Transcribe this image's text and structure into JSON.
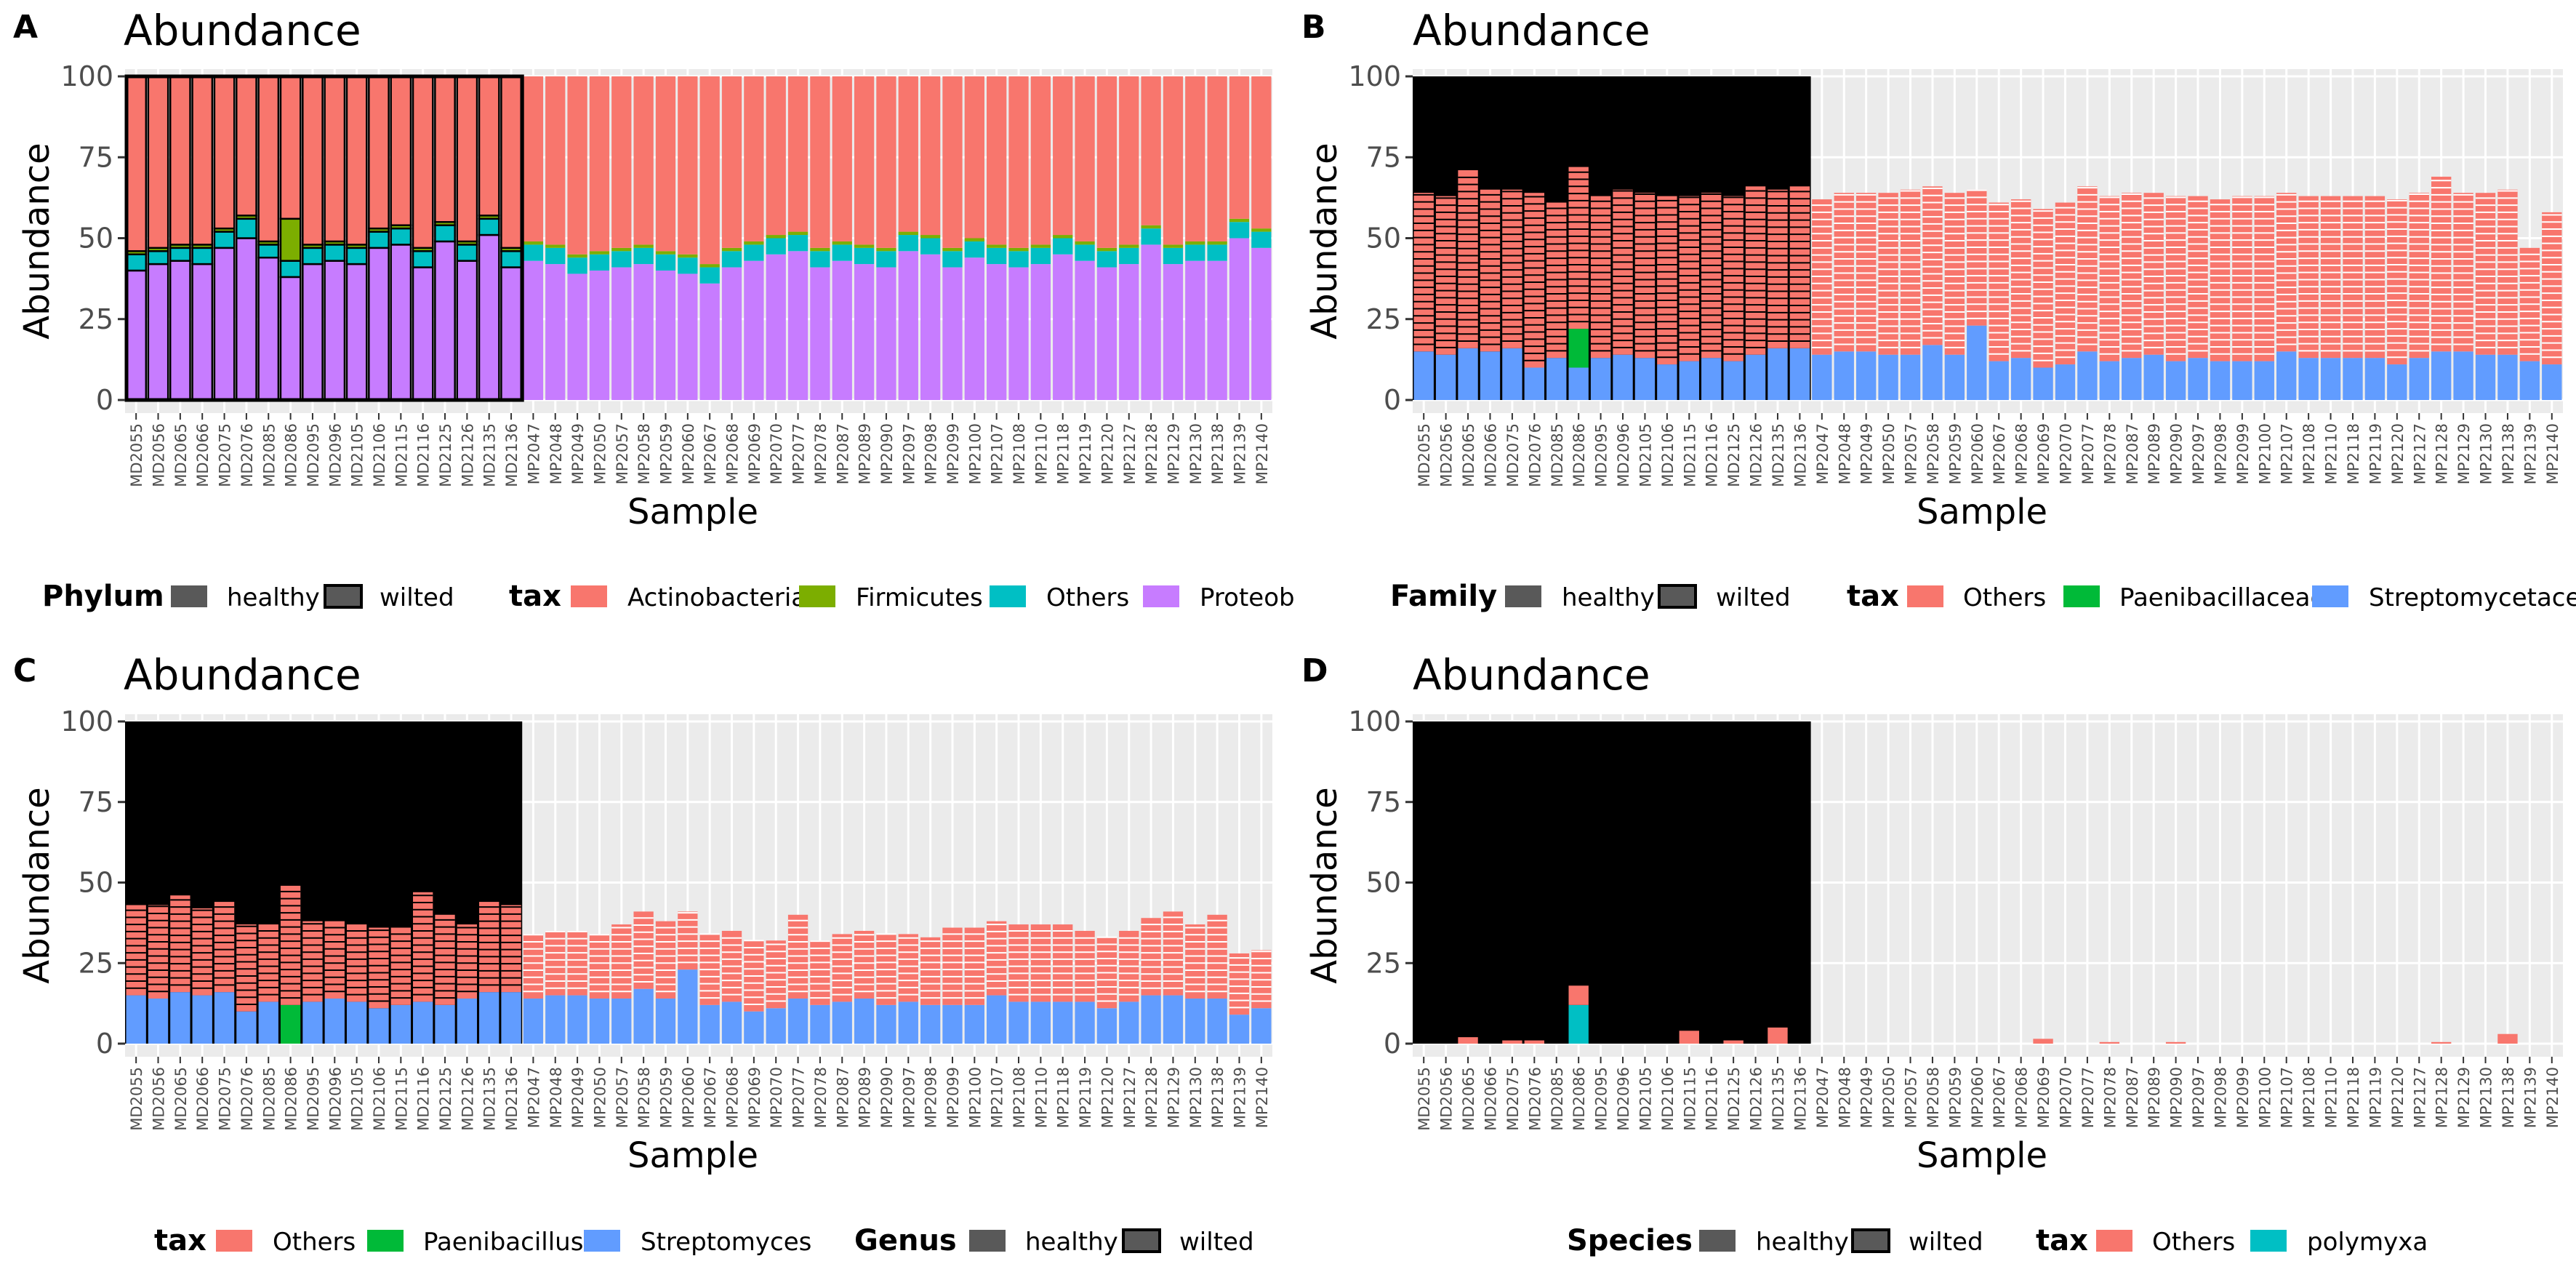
{
  "samples": [
    "MD2055",
    "MD2056",
    "MD2065",
    "MD2066",
    "MD2075",
    "MD2076",
    "MD2085",
    "MD2086",
    "MD2095",
    "MD2096",
    "MD2105",
    "MD2106",
    "MD2115",
    "MD2116",
    "MD2125",
    "MD2126",
    "MD2135",
    "MD2136",
    "MP2047",
    "MP2048",
    "MP2049",
    "MP2050",
    "MP2057",
    "MP2058",
    "MP2059",
    "MP2060",
    "MP2067",
    "MP2068",
    "MP2069",
    "MP2070",
    "MP2077",
    "MP2078",
    "MP2087",
    "MP2089",
    "MP2090",
    "MP2097",
    "MP2098",
    "MP2099",
    "MP2100",
    "MP2107",
    "MP2108",
    "MP2110",
    "MP2118",
    "MP2119",
    "MP2120",
    "MP2127",
    "MP2128",
    "MP2129",
    "MP2130",
    "MP2138",
    "MP2139",
    "MP2140"
  ],
  "colors": {
    "Actinobacteria": "#F8766D",
    "Firmicutes": "#7CAE00",
    "Others_teal": "#00BFC4",
    "Proteobacteria": "#C77CFF",
    "Others_red": "#F8766D",
    "Paenibacillaceae": "#00BA38",
    "Streptomycetaceae": "#619CFF",
    "Paenibacillus": "#00BA38",
    "Streptomyces": "#619CFF",
    "polymyxa": "#00BFC4",
    "healthy": "#595959",
    "wilted_outline": "#000000"
  },
  "chart_data": [
    {
      "panel": "A",
      "type": "bar",
      "title": "Abundance",
      "xlabel": "Sample",
      "ylabel": "Abundance",
      "ylim": [
        0,
        100
      ],
      "yticks": [
        0,
        25,
        50,
        75,
        100
      ],
      "grid": true,
      "legend_position": "bottom",
      "series": [
        {
          "name": "Proteobacteria",
          "values": [
            40,
            42,
            43,
            42,
            47,
            50,
            44,
            38,
            42,
            43,
            42,
            47,
            48,
            41,
            49,
            43,
            51,
            41,
            43,
            42,
            39,
            40,
            41,
            42,
            40,
            39,
            36,
            41,
            43,
            45,
            46,
            41,
            43,
            42,
            41,
            46,
            45,
            41,
            44,
            42,
            41,
            42,
            45,
            43,
            41,
            42,
            48,
            42,
            43,
            43,
            50,
            47
          ]
        },
        {
          "name": "Others",
          "values": [
            5,
            4,
            4,
            5,
            5,
            6,
            4,
            5,
            5,
            5,
            5,
            5,
            5,
            5,
            5,
            5,
            5,
            5,
            5,
            5,
            5,
            5,
            5,
            5,
            5,
            5,
            5,
            5,
            5,
            5,
            5,
            5,
            5,
            5,
            5,
            5,
            5,
            5,
            5,
            5,
            5,
            5,
            5,
            5,
            5,
            5,
            5,
            5,
            5,
            5,
            5,
            5
          ]
        },
        {
          "name": "Firmicutes",
          "values": [
            1,
            1,
            1,
            1,
            1,
            1,
            1,
            13,
            1,
            1,
            1,
            1,
            1,
            1,
            1,
            1,
            1,
            1,
            1,
            1,
            1,
            1,
            1,
            1,
            1,
            1,
            1,
            1,
            1,
            1,
            1,
            1,
            1,
            1,
            1,
            1,
            1,
            1,
            1,
            1,
            1,
            1,
            1,
            1,
            1,
            1,
            1,
            1,
            1,
            1,
            1,
            1
          ]
        },
        {
          "name": "Actinobacteria",
          "values": [
            54,
            53,
            52,
            52,
            47,
            43,
            51,
            44,
            52,
            51,
            52,
            47,
            46,
            53,
            45,
            51,
            43,
            53,
            51,
            52,
            55,
            54,
            53,
            52,
            54,
            55,
            58,
            53,
            51,
            49,
            48,
            53,
            51,
            52,
            53,
            48,
            49,
            53,
            50,
            52,
            53,
            52,
            49,
            51,
            53,
            52,
            46,
            52,
            51,
            51,
            44,
            47
          ]
        }
      ],
      "legend": {
        "title_group": "Phylum",
        "group_levels": [
          "healthy",
          "wilted"
        ],
        "title_tax": "tax",
        "tax_levels": [
          "Actinobacteria",
          "Firmicutes",
          "Others",
          "Proteob"
        ]
      }
    },
    {
      "panel": "B",
      "type": "bar",
      "title": "Abundance",
      "xlabel": "Sample",
      "ylabel": "Abundance",
      "ylim": [
        0,
        100
      ],
      "yticks": [
        0,
        25,
        50,
        75,
        100
      ],
      "grid": true,
      "legend_position": "bottom",
      "series": [
        {
          "name": "Streptomycetaceae",
          "values": [
            15,
            14,
            16,
            15,
            16,
            10,
            13,
            10,
            13,
            14,
            13,
            11,
            12,
            13,
            12,
            14,
            16,
            16,
            14,
            15,
            15,
            14,
            14,
            17,
            14,
            23,
            12,
            13,
            10,
            11,
            15,
            12,
            13,
            14,
            12,
            13,
            12,
            12,
            12,
            15,
            13,
            13,
            13,
            13,
            11,
            13,
            15,
            15,
            14,
            14,
            12,
            11
          ]
        },
        {
          "name": "Paenibacillaceae",
          "values": [
            0,
            0,
            0,
            0,
            0,
            0,
            0,
            12,
            0,
            0,
            0,
            0,
            0,
            0,
            0,
            0,
            0,
            0,
            0,
            0,
            0,
            0,
            0,
            0,
            0,
            0,
            0,
            0,
            0,
            0,
            0,
            0,
            0,
            0,
            0,
            0,
            0,
            0,
            0,
            0,
            0,
            0,
            0,
            0,
            0,
            0,
            0,
            0,
            0,
            0,
            0,
            0
          ]
        },
        {
          "name": "Others",
          "values": [
            49,
            49,
            55,
            50,
            49,
            54,
            48,
            50,
            50,
            51,
            51,
            52,
            51,
            51,
            51,
            52,
            49,
            50,
            48,
            49,
            49,
            50,
            51,
            49,
            50,
            42,
            49,
            49,
            49,
            50,
            51,
            51,
            51,
            50,
            51,
            50,
            50,
            51,
            51,
            49,
            50,
            50,
            50,
            50,
            51,
            51,
            54,
            49,
            50,
            51,
            35,
            47
          ]
        }
      ],
      "legend": {
        "title_group": "Family",
        "group_levels": [
          "healthy",
          "wilted"
        ],
        "title_tax": "tax",
        "tax_levels": [
          "Others",
          "Paenibacillaceae",
          "Streptomycetace"
        ]
      }
    },
    {
      "panel": "C",
      "type": "bar",
      "title": "Abundance",
      "xlabel": "Sample",
      "ylabel": "Abundance",
      "ylim": [
        0,
        100
      ],
      "yticks": [
        0,
        25,
        50,
        75,
        100
      ],
      "grid": true,
      "legend_position": "bottom",
      "series": [
        {
          "name": "Streptomyces",
          "values": [
            15,
            14,
            16,
            15,
            16,
            10,
            13,
            0,
            13,
            14,
            13,
            11,
            12,
            13,
            12,
            14,
            16,
            16,
            14,
            15,
            15,
            14,
            14,
            17,
            14,
            23,
            12,
            13,
            10,
            11,
            14,
            12,
            13,
            14,
            12,
            13,
            12,
            12,
            12,
            15,
            13,
            13,
            13,
            13,
            11,
            13,
            15,
            15,
            14,
            14,
            9,
            11
          ]
        },
        {
          "name": "Paenibacillus",
          "values": [
            0,
            0,
            0,
            0,
            0,
            0,
            0,
            12,
            0,
            0,
            0,
            0,
            0,
            0,
            0,
            0,
            0,
            0,
            0,
            0,
            0,
            0,
            0,
            0,
            0,
            0,
            0,
            0,
            0,
            0,
            0,
            0,
            0,
            0,
            0,
            0,
            0,
            0,
            0,
            0,
            0,
            0,
            0,
            0,
            0,
            0,
            0,
            0,
            0,
            0,
            0,
            0
          ]
        },
        {
          "name": "Others",
          "values": [
            28,
            29,
            30,
            27,
            28,
            27,
            24,
            37,
            25,
            24,
            24,
            25,
            24,
            34,
            28,
            23,
            28,
            27,
            20,
            20,
            20,
            20,
            23,
            24,
            24,
            18,
            22,
            22,
            22,
            21,
            26,
            20,
            21,
            21,
            22,
            21,
            21,
            24,
            24,
            23,
            24,
            24,
            24,
            22,
            22,
            22,
            24,
            26,
            23,
            26,
            19,
            18
          ]
        }
      ],
      "legend": {
        "title_tax": "tax",
        "tax_levels": [
          "Others",
          "Paenibacillus",
          "Streptomyces"
        ],
        "title_group": "Genus",
        "group_levels": [
          "healthy",
          "wilted"
        ]
      }
    },
    {
      "panel": "D",
      "type": "bar",
      "title": "Abundance",
      "xlabel": "Sample",
      "ylabel": "Abundance",
      "ylim": [
        0,
        100
      ],
      "yticks": [
        0,
        25,
        50,
        75,
        100
      ],
      "grid": true,
      "legend_position": "bottom",
      "series": [
        {
          "name": "polymyxa",
          "values": [
            0,
            0,
            0,
            0,
            0,
            0,
            0,
            12,
            0,
            0,
            0,
            0,
            0,
            0,
            0,
            0,
            0,
            0,
            0,
            0,
            0,
            0,
            0,
            0,
            0,
            0,
            0,
            0,
            0,
            0,
            0,
            0,
            0,
            0,
            0,
            0,
            0,
            0,
            0,
            0,
            0,
            0,
            0,
            0,
            0,
            0,
            0,
            0,
            0,
            0,
            0,
            0
          ]
        },
        {
          "name": "Others",
          "values": [
            0,
            0,
            2,
            0,
            1,
            1,
            0,
            6,
            0,
            0,
            0,
            0,
            4,
            0,
            1,
            0,
            5,
            0,
            0,
            0,
            0,
            0,
            0,
            0,
            0,
            0,
            0,
            0,
            1.5,
            0,
            0,
            0.5,
            0,
            0,
            0.5,
            0,
            0,
            0,
            0,
            0,
            0,
            0,
            0,
            0,
            0,
            0,
            0.5,
            0,
            0,
            3,
            0,
            0
          ]
        }
      ],
      "legend": {
        "title_group": "Species",
        "group_levels": [
          "healthy",
          "wilted"
        ],
        "title_tax": "tax",
        "tax_levels": [
          "Others",
          "polymyxa"
        ]
      }
    }
  ]
}
